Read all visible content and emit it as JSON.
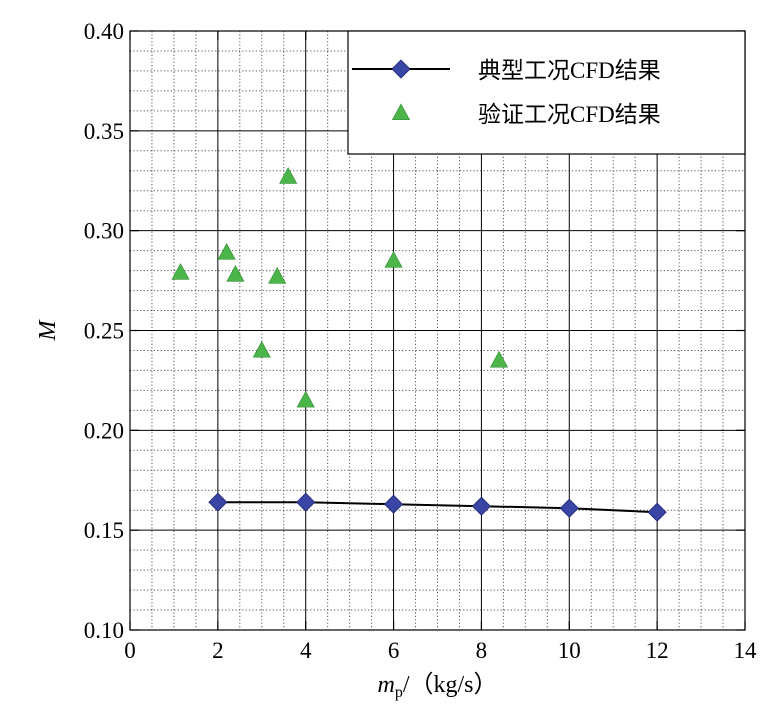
{
  "chart_data": {
    "type": "scatter",
    "xlabel": {
      "var": "m",
      "sub": "p",
      "unit": "/（kg/s）"
    },
    "ylabel": "M",
    "xlim": [
      0,
      14
    ],
    "ylim": [
      0.1,
      0.4
    ],
    "x_ticks": [
      0,
      2,
      4,
      6,
      8,
      10,
      12,
      14
    ],
    "y_ticks": [
      0.1,
      0.15,
      0.2,
      0.25,
      0.3,
      0.35,
      0.4
    ],
    "x_tick_labels": [
      "0",
      "2",
      "4",
      "6",
      "8",
      "10",
      "12",
      "14"
    ],
    "y_tick_labels": [
      "0.10",
      "0.15",
      "0.20",
      "0.25",
      "0.30",
      "0.35",
      "0.40"
    ],
    "grid": true,
    "legend_position": "top-right",
    "series": [
      {
        "name": "典型工况CFD结果",
        "marker": "diamond",
        "line": true,
        "color": "#3a46a6",
        "line_color": "#000000",
        "points": [
          {
            "x": 2,
            "y": 0.164
          },
          {
            "x": 4,
            "y": 0.164
          },
          {
            "x": 6,
            "y": 0.163
          },
          {
            "x": 8,
            "y": 0.162
          },
          {
            "x": 10,
            "y": 0.161
          },
          {
            "x": 12,
            "y": 0.159
          }
        ]
      },
      {
        "name": "验证工况CFD结果",
        "marker": "triangle",
        "line": false,
        "color": "#4bb54a",
        "points": [
          {
            "x": 1.15,
            "y": 0.279
          },
          {
            "x": 2.2,
            "y": 0.289
          },
          {
            "x": 2.4,
            "y": 0.278
          },
          {
            "x": 3.0,
            "y": 0.24
          },
          {
            "x": 3.35,
            "y": 0.277
          },
          {
            "x": 3.6,
            "y": 0.327
          },
          {
            "x": 4.0,
            "y": 0.215
          },
          {
            "x": 6.0,
            "y": 0.285
          },
          {
            "x": 8.4,
            "y": 0.235
          }
        ]
      }
    ]
  }
}
